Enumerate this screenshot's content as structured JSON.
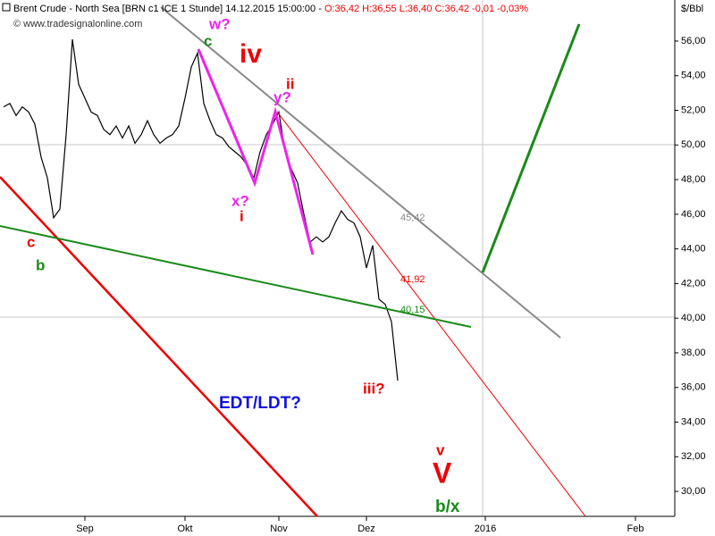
{
  "chart_data": {
    "type": "line",
    "title": "Brent Crude - North Sea [BRN c1 ICE  1 Stunde] 14.12.2015 15:00:00 - ",
    "subtitle": "O:36,42 H:36,55 L:36,40 C:36,42 -0,01 -0,03%",
    "source": "© www.tradesignalonline.com",
    "y_label": "$/Bbl",
    "categories": [
      null,
      null,
      null,
      null,
      null,
      null,
      null,
      null,
      null,
      null,
      null,
      null,
      null,
      "Sep",
      null,
      null,
      null,
      null,
      null,
      null,
      null,
      null,
      null,
      null,
      null,
      null,
      null,
      null,
      null,
      "Okt",
      null,
      null,
      null,
      null,
      null,
      null,
      null,
      null,
      null,
      null,
      null,
      null,
      null,
      null,
      "Nov",
      null,
      null,
      null,
      null,
      null,
      null,
      null,
      null,
      null,
      null,
      null,
      null,
      null,
      "Dez",
      null,
      null,
      null,
      null,
      null,
      null,
      null,
      null,
      null,
      null,
      null,
      null,
      null,
      null,
      null,
      null,
      null,
      null,
      "2016",
      null,
      null,
      null,
      null,
      null,
      null,
      null,
      null,
      null,
      null,
      null,
      null,
      null,
      null,
      null,
      null,
      null,
      null,
      null,
      null,
      null,
      null,
      null,
      "Feb",
      null,
      null,
      null,
      null,
      null,
      null
    ],
    "series": [
      {
        "name": "Brent Crude",
        "color": "#000000",
        "values": [
          52.2,
          52.4,
          51.7,
          52.2,
          51.9,
          51.2,
          49.3,
          48.1,
          45.8,
          46.3,
          50.6,
          56.1,
          53.5,
          52.7,
          51.9,
          51.7,
          50.9,
          50.6,
          51.1,
          50.4,
          51.1,
          50.1,
          50.6,
          51.4,
          50.6,
          50.1,
          50.4,
          50.6,
          51.1,
          52.7,
          54.5,
          55.3,
          52.4,
          51.4,
          50.6,
          50.4,
          49.9,
          49.6,
          49.3,
          48.8,
          48.1,
          49.6,
          50.6,
          51.2,
          51.9,
          49.6,
          48.6,
          47.8,
          46.0,
          44.4,
          44.7,
          44.4,
          44.7,
          45.5,
          46.2,
          45.7,
          45.5,
          44.7,
          42.9,
          44.2,
          41.1,
          40.8,
          39.8,
          36.4,
          null,
          null,
          null,
          null,
          null,
          null,
          null,
          null,
          null,
          null,
          null,
          null,
          null,
          null,
          null,
          null,
          null,
          null,
          null,
          null,
          null,
          null,
          null,
          null,
          null,
          null,
          null,
          null,
          null,
          null,
          null,
          null,
          null,
          null,
          null,
          null,
          null,
          null,
          null,
          null,
          null,
          null,
          null,
          null
        ]
      }
    ],
    "ylim": [
      28.56,
      58.37
    ],
    "yticks": [
      {
        "value": 30,
        "label": "30,00"
      },
      {
        "value": 32,
        "label": "32,00"
      },
      {
        "value": 34,
        "label": "34,00"
      },
      {
        "value": 36,
        "label": "36,00"
      },
      {
        "value": 38,
        "label": "38,00"
      },
      {
        "value": 40,
        "label": "40,00"
      },
      {
        "value": 42,
        "label": "42,00"
      },
      {
        "value": 44,
        "label": "44,00"
      },
      {
        "value": 46,
        "label": "46,00"
      },
      {
        "value": 48,
        "label": "48,00"
      },
      {
        "value": 50,
        "label": "50,00"
      },
      {
        "value": 52,
        "label": "52,00"
      },
      {
        "value": 54,
        "label": "54,00"
      },
      {
        "value": 56,
        "label": "56,00"
      }
    ],
    "annotations": [
      "w?",
      "c",
      "iv",
      "ii",
      "y?",
      "x?",
      "i",
      "c",
      "b",
      "EDT/LDT?",
      "iii?",
      "v",
      "V",
      "b/x",
      "45,42",
      "41,92",
      "40,15"
    ]
  }
}
